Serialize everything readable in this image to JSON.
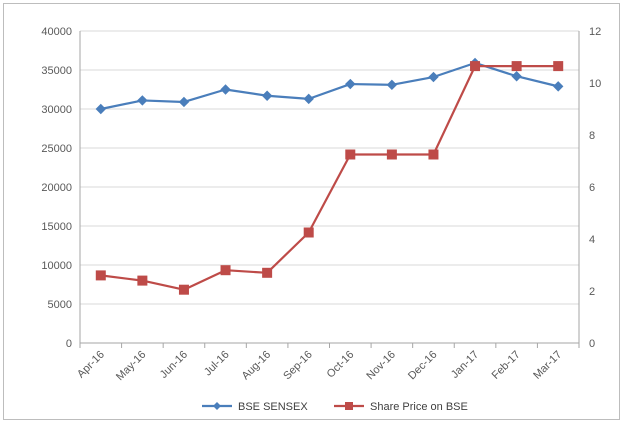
{
  "chart_data": {
    "type": "line",
    "categories": [
      "Apr-16",
      "May-16",
      "Jun-16",
      "Jul-16",
      "Aug-16",
      "Sep-16",
      "Oct-16",
      "Nov-16",
      "Dec-16",
      "Jan-17",
      "Feb-17",
      "Mar-17"
    ],
    "series": [
      {
        "name": "BSE SENSEX",
        "axis": "left",
        "marker": "diamond",
        "color": "#4a7ebb",
        "values": [
          30000,
          31100,
          30900,
          32500,
          31700,
          31300,
          33200,
          33100,
          34100,
          35900,
          34200,
          32900
        ]
      },
      {
        "name": "Share Price on BSE",
        "axis": "right",
        "marker": "square",
        "color": "#be4b48",
        "values": [
          2.6,
          2.4,
          2.05,
          2.8,
          2.7,
          4.25,
          7.25,
          7.25,
          7.25,
          10.65,
          10.65,
          10.65
        ]
      }
    ],
    "y_left": {
      "ylim": [
        0,
        40000
      ],
      "ticks": [
        "0",
        "5000",
        "10000",
        "15000",
        "20000",
        "25000",
        "30000",
        "35000",
        "40000"
      ]
    },
    "y_right": {
      "ylim": [
        0,
        12
      ],
      "ticks": [
        "0",
        "2",
        "4",
        "6",
        "8",
        "10",
        "12"
      ]
    },
    "title": "",
    "xlabel": "",
    "ylabel": "",
    "grid": true,
    "legend": "bottom"
  }
}
